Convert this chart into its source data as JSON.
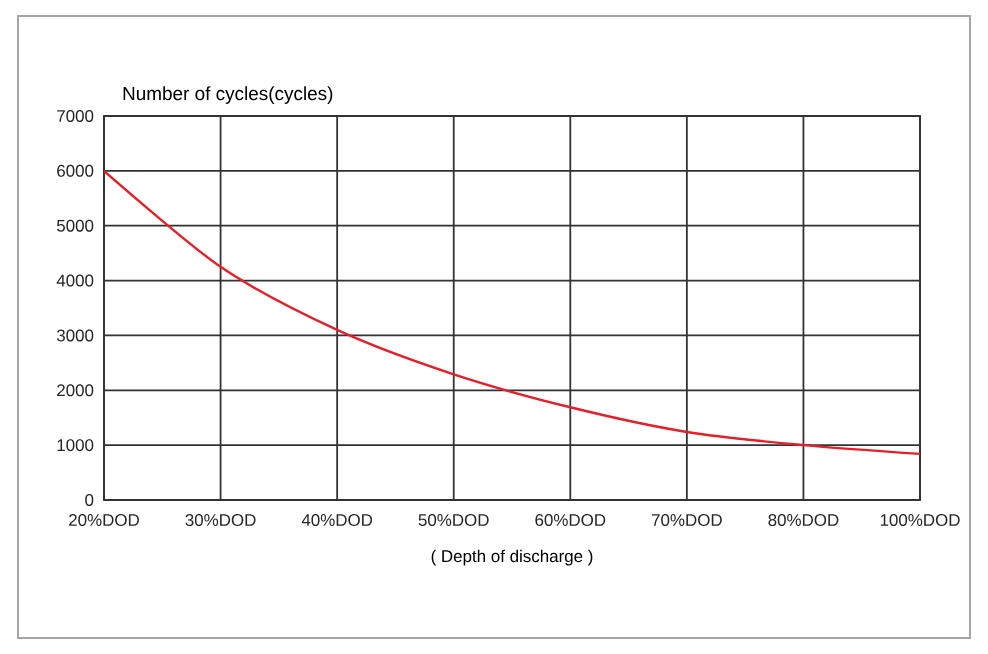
{
  "chart_data": {
    "type": "line",
    "ylabel": "Number of cycles(cycles)",
    "xlabel": "( Depth of discharge )",
    "categories": [
      "20%DOD",
      "30%DOD",
      "40%DOD",
      "50%DOD",
      "60%DOD",
      "70%DOD",
      "80%DOD",
      "100%DOD"
    ],
    "series": [
      {
        "color": "#e3202a",
        "values": [
          6000,
          4250,
          3100,
          2290,
          1690,
          1240,
          1000,
          840
        ]
      }
    ],
    "ylim": [
      0,
      7000
    ],
    "yticks": [
      0,
      1000,
      2000,
      3000,
      4000,
      5000,
      6000,
      7000
    ],
    "grid": true,
    "marker": "none",
    "line_style": "solid"
  }
}
